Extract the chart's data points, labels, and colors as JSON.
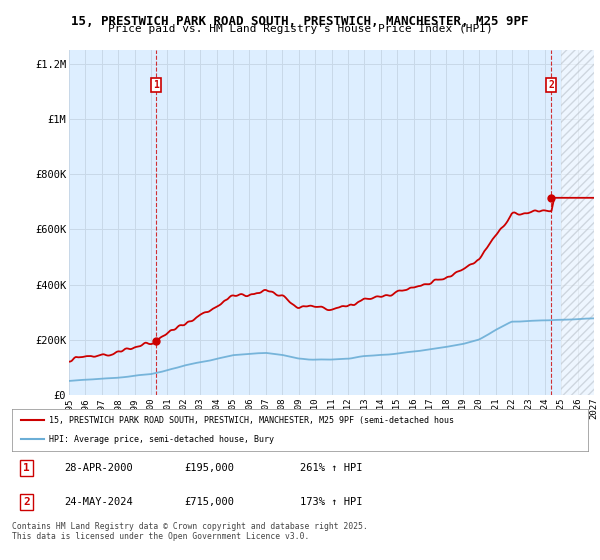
{
  "title1": "15, PRESTWICH PARK ROAD SOUTH, PRESTWICH, MANCHESTER, M25 9PF",
  "title2": "Price paid vs. HM Land Registry's House Price Index (HPI)",
  "ylim": [
    0,
    1250000
  ],
  "yticks": [
    0,
    200000,
    400000,
    600000,
    800000,
    1000000,
    1200000
  ],
  "ytick_labels": [
    "£0",
    "£200K",
    "£400K",
    "£600K",
    "£800K",
    "£1M",
    "£1.2M"
  ],
  "background_color": "#ffffff",
  "plot_bg_color": "#ddeeff",
  "grid_color": "#c8d8e8",
  "hpi_color": "#6baed6",
  "price_color": "#cc0000",
  "marker1_year": 2000.32,
  "marker1_price": 195000,
  "marker2_year": 2024.39,
  "marker2_price": 715000,
  "annotation1": {
    "label": "1",
    "date": "28-APR-2000",
    "price": "£195,000",
    "hpi": "261% ↑ HPI"
  },
  "annotation2": {
    "label": "2",
    "date": "24-MAY-2024",
    "price": "£715,000",
    "hpi": "173% ↑ HPI"
  },
  "legend_line1": "15, PRESTWICH PARK ROAD SOUTH, PRESTWICH, MANCHESTER, M25 9PF (semi-detached hous",
  "legend_line2": "HPI: Average price, semi-detached house, Bury",
  "footer": "Contains HM Land Registry data © Crown copyright and database right 2025.\nThis data is licensed under the Open Government Licence v3.0.",
  "xmin": 1995,
  "xmax": 2027,
  "hatch_start": 2025.0
}
